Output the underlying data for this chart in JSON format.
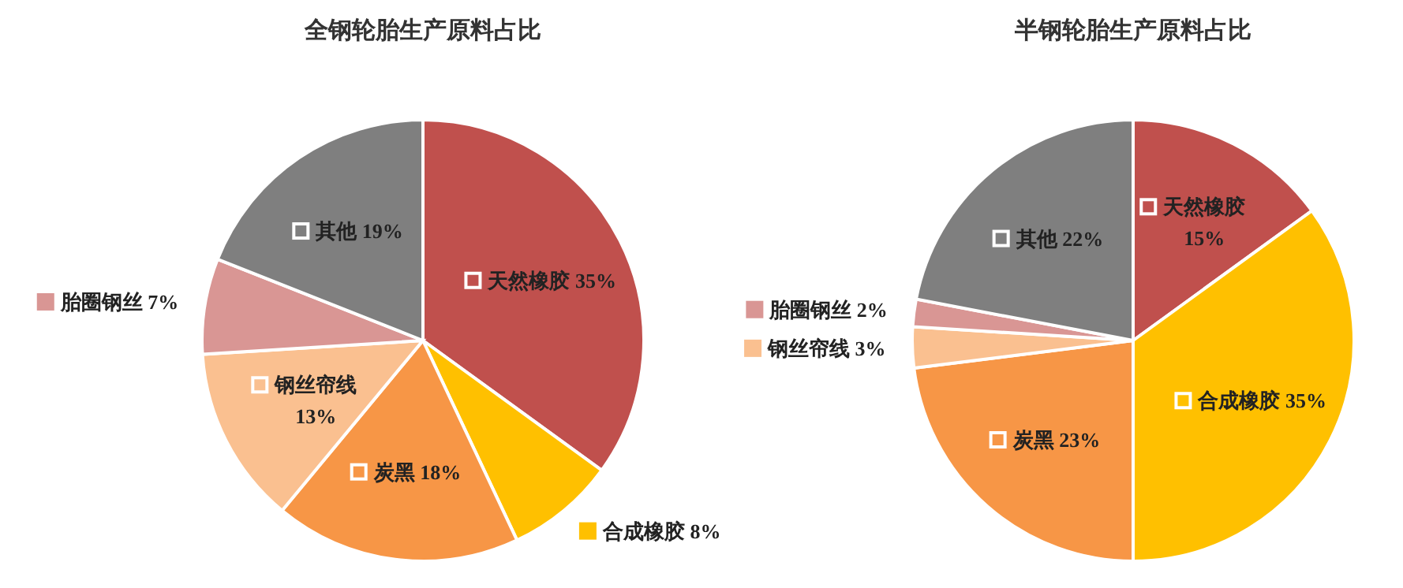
{
  "chart_data": [
    {
      "type": "pie",
      "title": "全钢轮胎生产原料占比",
      "categories": [
        "天然橡胶",
        "合成橡胶",
        "炭黑",
        "钢丝帘线",
        "胎圈钢丝",
        "其他"
      ],
      "values": [
        35,
        8,
        18,
        13,
        7,
        19
      ],
      "value_labels": [
        "35%",
        "8%",
        "18%",
        "13%",
        "7%",
        "19%"
      ],
      "colors": [
        "#c0504d",
        "#ffc000",
        "#f79646",
        "#fac090",
        "#d99694",
        "#7f7f7f"
      ],
      "legend": "left"
    },
    {
      "type": "pie",
      "title": "半钢轮胎生产原料占比",
      "categories": [
        "天然橡胶",
        "合成橡胶",
        "炭黑",
        "钢丝帘线",
        "胎圈钢丝",
        "其他"
      ],
      "values": [
        15,
        35,
        23,
        3,
        2,
        22
      ],
      "value_labels": [
        "15%",
        "35%",
        "23%",
        "3%",
        "2%",
        "22%"
      ],
      "colors": [
        "#c0504d",
        "#ffc000",
        "#f79646",
        "#fac090",
        "#d99694",
        "#7f7f7f"
      ],
      "legend": "left"
    }
  ]
}
